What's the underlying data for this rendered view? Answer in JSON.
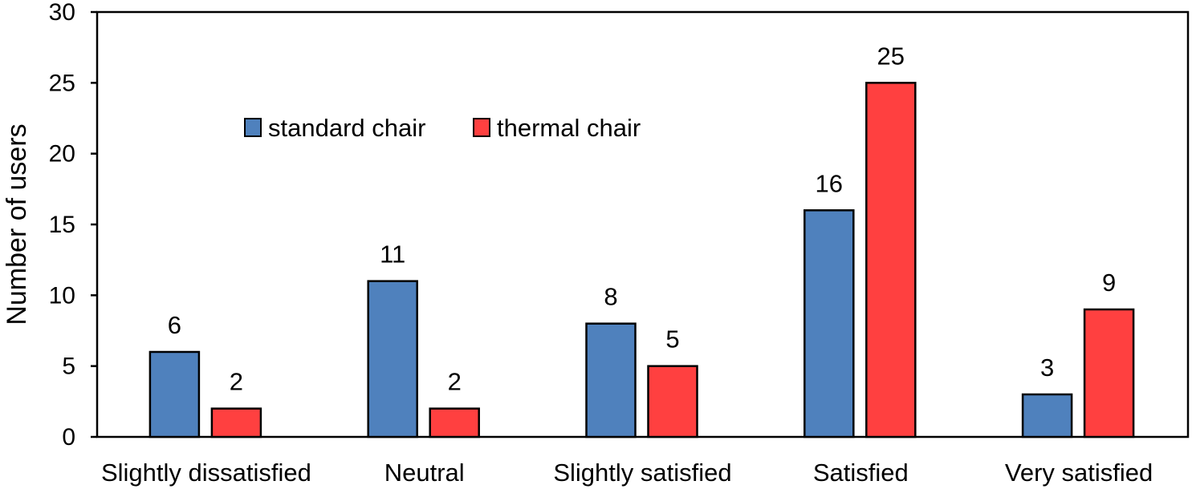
{
  "chart_data": {
    "type": "bar",
    "title": "",
    "xlabel": "",
    "ylabel": "Number of users",
    "ylim": [
      0,
      30
    ],
    "yticks": [
      0,
      5,
      10,
      15,
      20,
      25,
      30
    ],
    "grid": false,
    "legend_position": "top-left",
    "categories": [
      "Slightly dissatisfied",
      "Neutral",
      "Slightly satisfied",
      "Satisfied",
      "Very satisfied"
    ],
    "series": [
      {
        "name": "standard chair",
        "color": "#4f81bd",
        "values": [
          6,
          11,
          8,
          16,
          3
        ]
      },
      {
        "name": "thermal chair",
        "color": "#ff4040",
        "values": [
          2,
          2,
          5,
          25,
          9
        ]
      }
    ]
  }
}
